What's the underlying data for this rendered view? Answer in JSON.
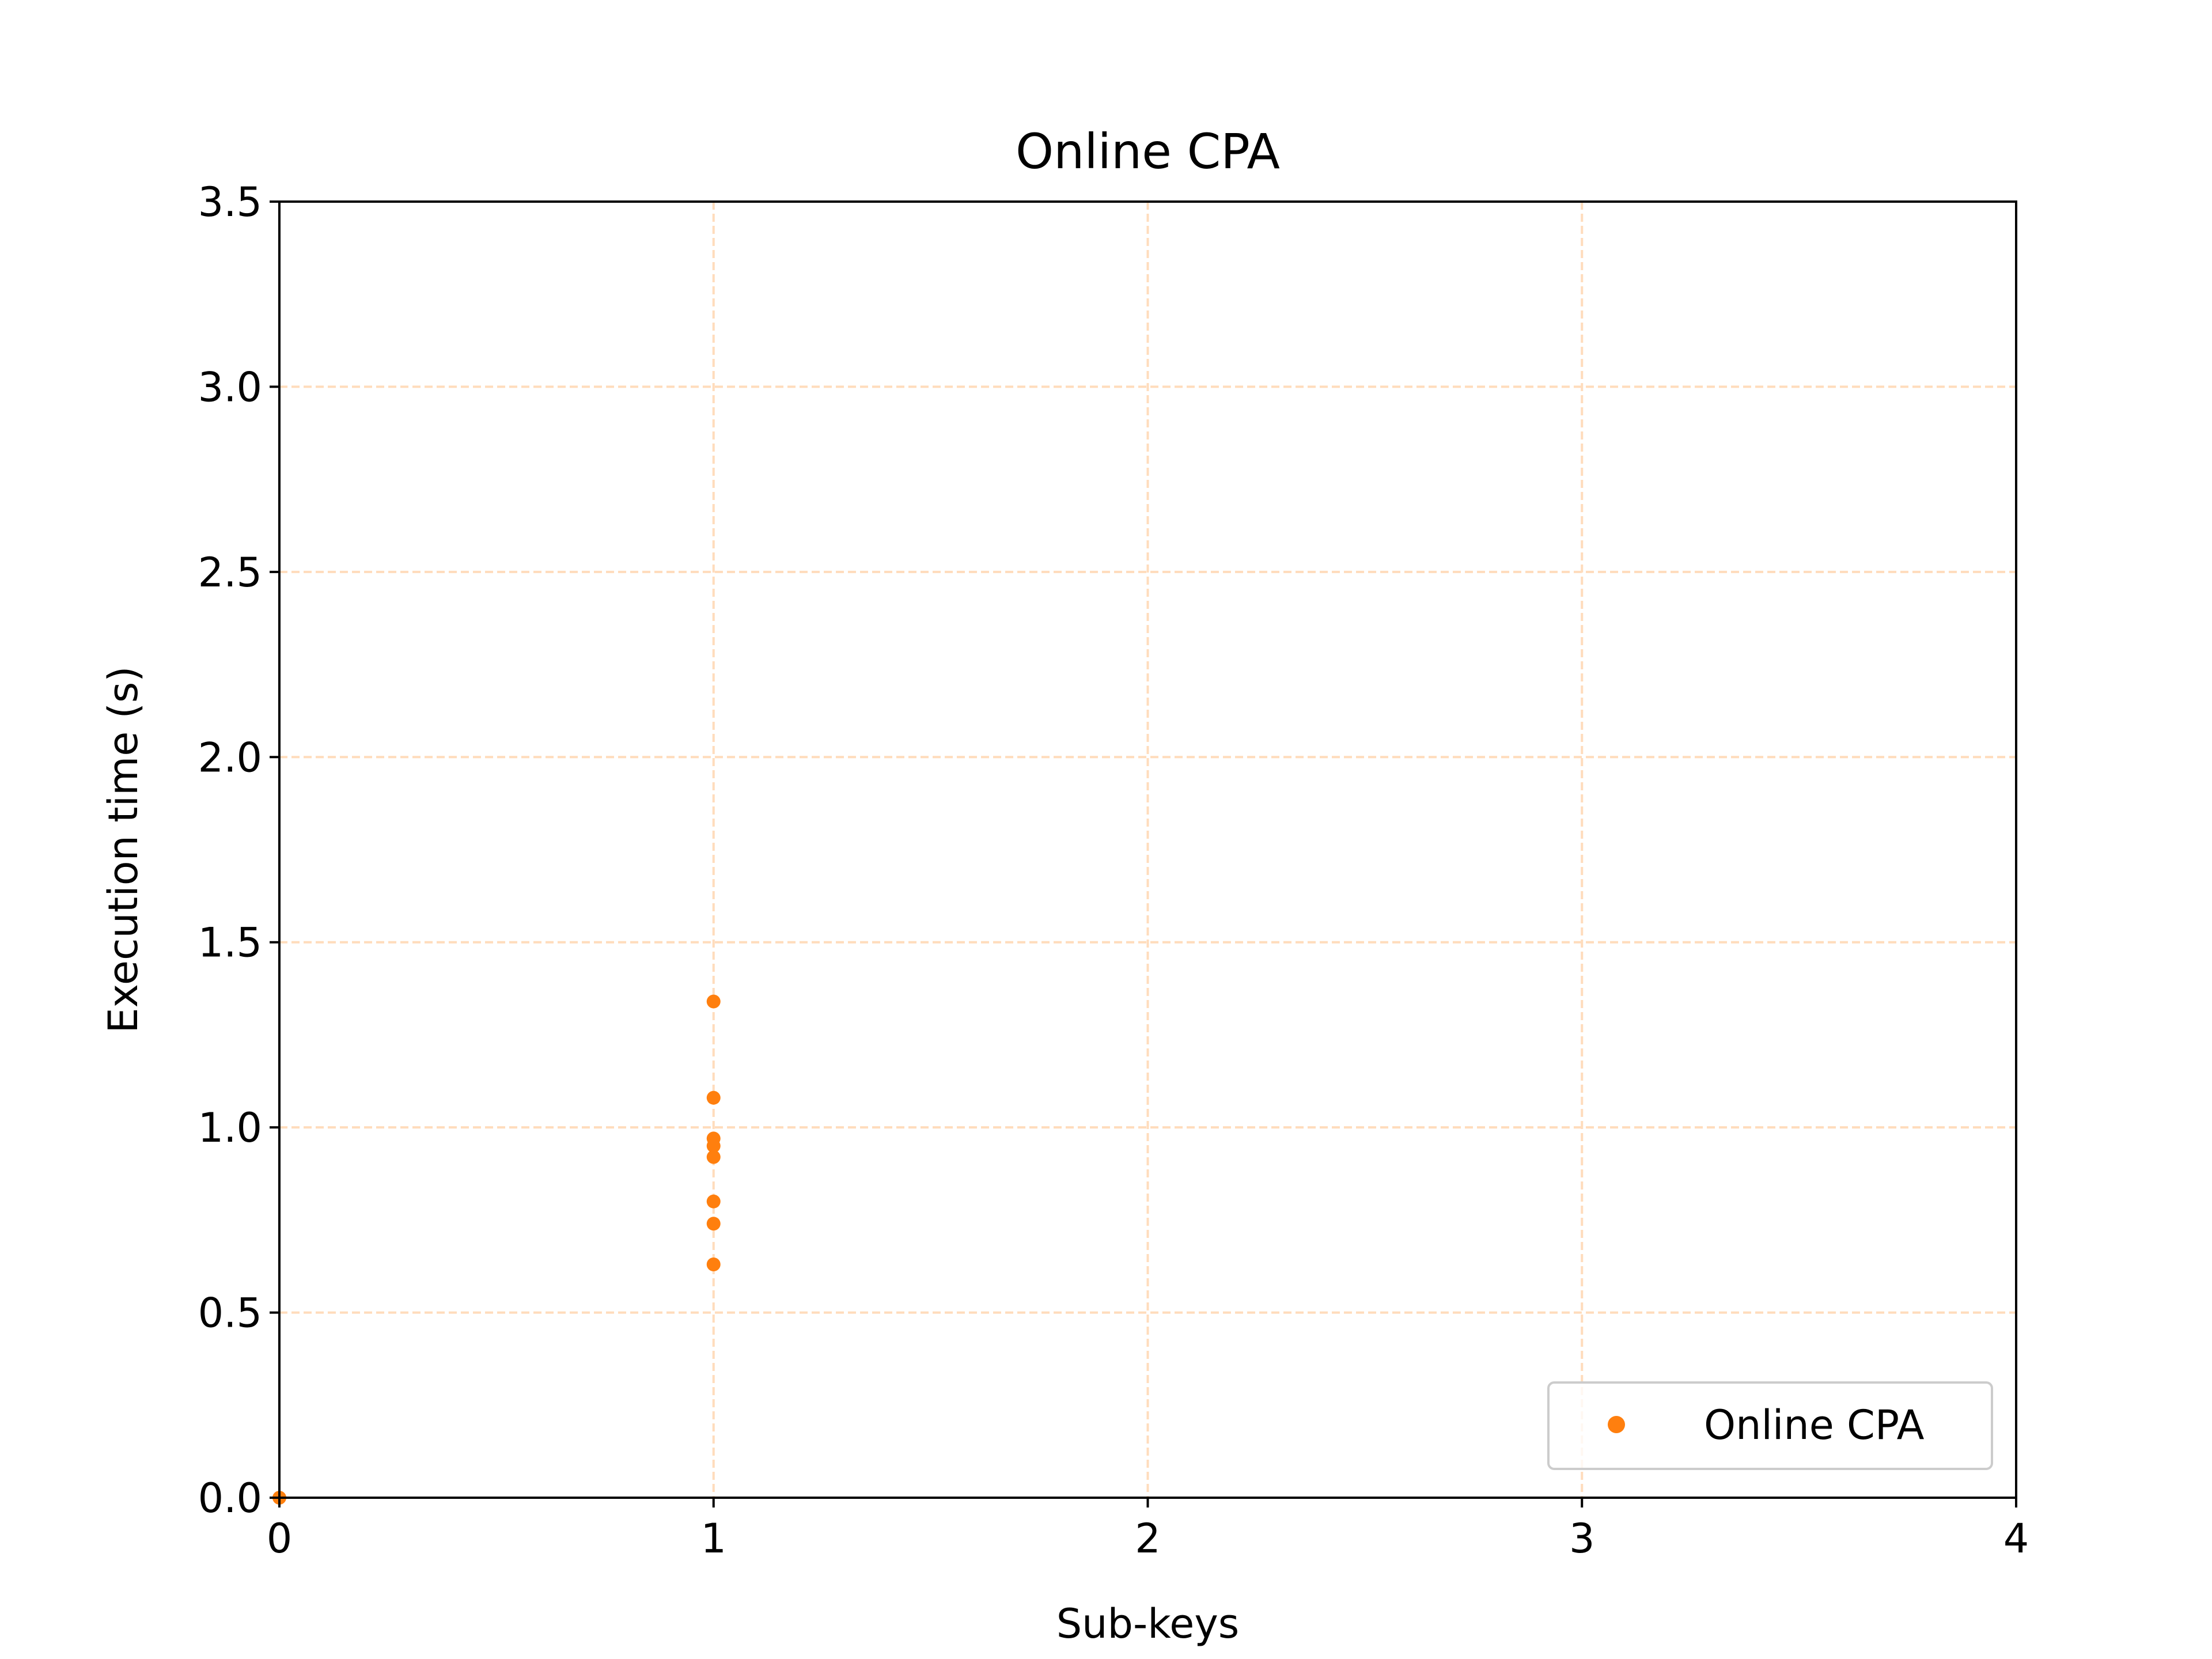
{
  "chart_data": {
    "type": "scatter",
    "title": "Online CPA",
    "xlabel": "Sub-keys",
    "ylabel": "Execution time (s)",
    "xlim": [
      0,
      4
    ],
    "ylim": [
      0,
      3.5
    ],
    "xticks": [
      0,
      1,
      2,
      3,
      4
    ],
    "xtick_labels": [
      "0",
      "1",
      "2",
      "3",
      "4"
    ],
    "yticks": [
      0,
      0.5,
      1.0,
      1.5,
      2.0,
      2.5,
      3.0,
      3.5
    ],
    "ytick_labels": [
      "0.0",
      "0.5",
      "1.0",
      "1.5",
      "2.0",
      "2.5",
      "3.0",
      "3.5"
    ],
    "grid": true,
    "grid_style": "dashed",
    "grid_color": "#ffdcbc",
    "legend_position": "lower-right",
    "series": [
      {
        "name": "Online CPA",
        "color": "#ff7f0e",
        "points": [
          {
            "x": 0,
            "y": 0.0
          },
          {
            "x": 1,
            "y": 1.34
          },
          {
            "x": 1,
            "y": 1.08
          },
          {
            "x": 1,
            "y": 0.97
          },
          {
            "x": 1,
            "y": 0.95
          },
          {
            "x": 1,
            "y": 0.92
          },
          {
            "x": 1,
            "y": 0.8
          },
          {
            "x": 1,
            "y": 0.74
          },
          {
            "x": 1,
            "y": 0.63
          }
        ]
      }
    ]
  }
}
